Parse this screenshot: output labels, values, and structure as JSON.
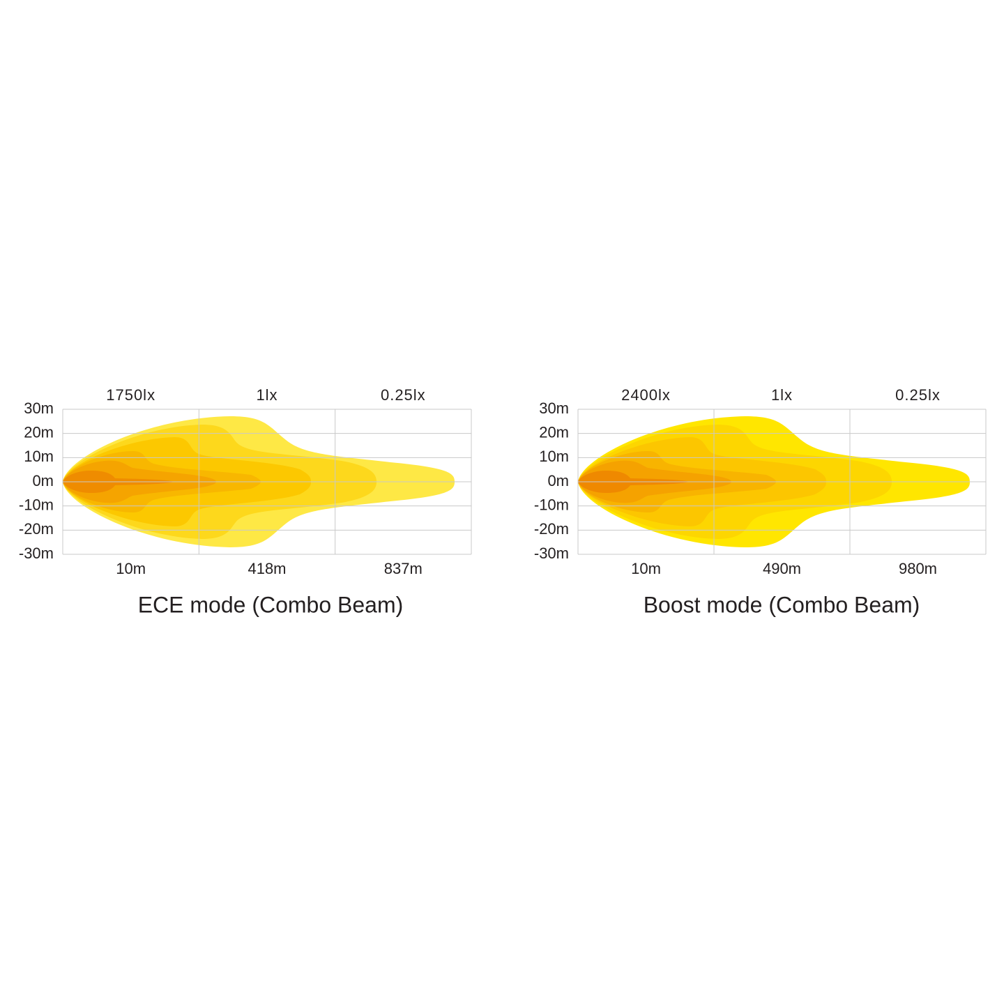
{
  "panels": [
    {
      "title": "ECE mode (Combo Beam)",
      "lux_labels": [
        "1750lx",
        "1lx",
        "0.25lx"
      ],
      "distance_labels": [
        "10m",
        "418m",
        "837m"
      ],
      "y_labels": [
        "30m",
        "20m",
        "10m",
        "0m",
        "-10m",
        "-20m",
        "-30m"
      ]
    },
    {
      "title": "Boost mode (Combo Beam)",
      "lux_labels": [
        "2400lx",
        "1lx",
        "0.25lx"
      ],
      "distance_labels": [
        "10m",
        "490m",
        "980m"
      ],
      "y_labels": [
        "30m",
        "20m",
        "10m",
        "0m",
        "-10m",
        "-20m",
        "-30m"
      ]
    }
  ]
}
